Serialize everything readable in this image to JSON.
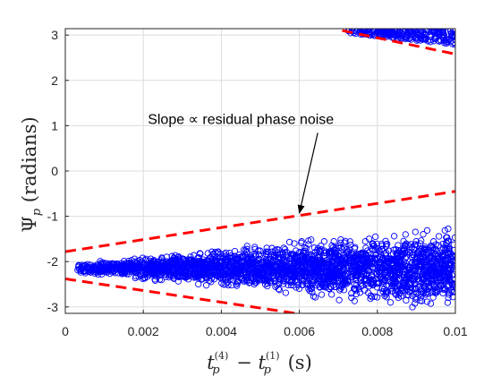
{
  "chart_data": {
    "type": "scatter",
    "title": "",
    "xlabel": {
      "prefix": "t",
      "sub1": "p",
      "sup1": "(4)",
      "minus": " − ",
      "t2": "t",
      "sub2": "p",
      "sup2": "(1)",
      "units": " (s)"
    },
    "ylabel": {
      "psi": "Ψ",
      "sub": "p",
      "units": " (radians)"
    },
    "xlim": [
      0,
      0.01
    ],
    "ylim": [
      -3.14159,
      3.14159
    ],
    "grid": true,
    "xticks": [
      0,
      0.002,
      0.004,
      0.006,
      0.008,
      0.01
    ],
    "xtick_labels": [
      "0",
      "0.002",
      "0.004",
      "0.006",
      "0.008",
      "0.01"
    ],
    "yticks": [
      -3,
      -2,
      -1,
      0,
      1,
      2,
      3
    ],
    "ytick_labels": [
      "-3",
      "-2",
      "-1",
      "0",
      "1",
      "2",
      "3"
    ],
    "marker": "open-circle",
    "marker_color": "#0000ff",
    "bulk_band": {
      "x_range": [
        0.0003,
        0.01
      ],
      "center": -2.15,
      "half_width_start": 0.12,
      "half_width_end": 0.95
    },
    "wrapped_band": {
      "x_range": [
        0.0072,
        0.01
      ],
      "y_top": 3.14,
      "y_bottom_start": 3.05,
      "y_bottom_end": 2.78
    },
    "reference_lines": [
      {
        "x": [
          0,
          0.01
        ],
        "y": [
          -1.78,
          -0.45
        ],
        "color": "#ff0000",
        "style": "dashed"
      },
      {
        "x": [
          0,
          0.0062
        ],
        "y": [
          -2.38,
          -3.18
        ],
        "color": "#ff0000",
        "style": "dashed"
      },
      {
        "x": [
          0.0071,
          0.01
        ],
        "y": [
          3.1,
          2.58
        ],
        "color": "#ff0000",
        "style": "dashed"
      }
    ],
    "annotation": {
      "text": "Slope ∝ residual phase noise",
      "text_pos": [
        0.0045,
        1.0
      ],
      "arrow_tip": [
        0.006,
        -0.93
      ]
    }
  }
}
